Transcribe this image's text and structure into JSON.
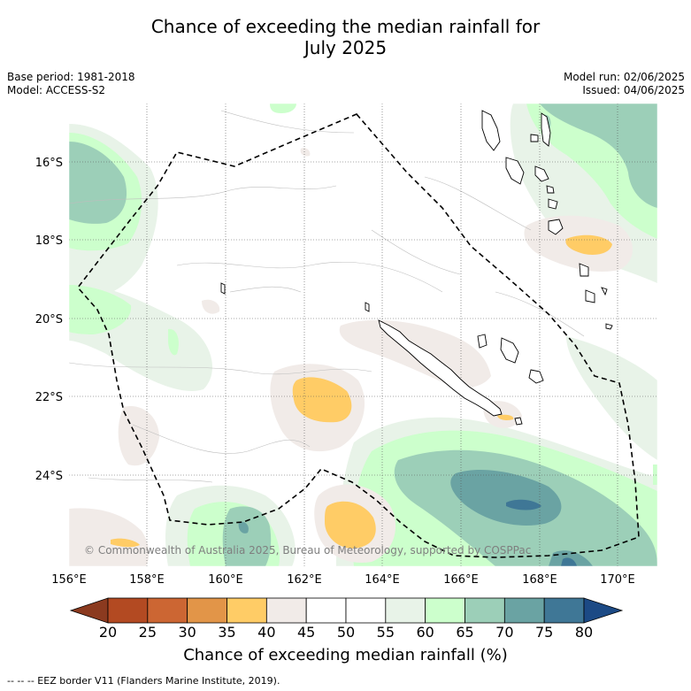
{
  "title_line1": "Chance of exceeding the median rainfall for",
  "title_line2": "July 2025",
  "meta_left": {
    "base_period": "Base period: 1981-2018",
    "model": "Model: ACCESS-S2"
  },
  "meta_right": {
    "model_run": "Model run: 02/06/2025",
    "issued": "Issued: 04/06/2025"
  },
  "lat_ticks": [
    "16°S",
    "18°S",
    "20°S",
    "22°S",
    "24°S"
  ],
  "lon_ticks": [
    "156°E",
    "158°E",
    "160°E",
    "162°E",
    "164°E",
    "166°E",
    "168°E",
    "170°E"
  ],
  "copyright": "© Commonwealth of Australia 2025, Bureau of Meteorology, supported by COSPPac",
  "colorbar": {
    "ticks": [
      "20",
      "25",
      "30",
      "35",
      "40",
      "45",
      "50",
      "55",
      "60",
      "65",
      "70",
      "75",
      "80"
    ],
    "colors": [
      "#8b3a1f",
      "#b34a22",
      "#cc6633",
      "#e29548",
      "#ffcc66",
      "#f1ebe8",
      "#ffffff",
      "#ffffff",
      "#e8f3e8",
      "#ccffcc",
      "#9ccfb8",
      "#6aa3a3",
      "#3f7796",
      "#1c4a85"
    ],
    "label": "Chance of exceeding median rainfall (%)"
  },
  "footnote": "--  --  -- EEZ border V11 (Flanders Marine Institute, 2019).",
  "colors": {
    "c35_40": "#ffcc66",
    "c40_45": "#f1ebe8",
    "c55_60": "#e8f3e8",
    "c60_65": "#ccffcc",
    "c65_70": "#9ccfb8",
    "c70_75": "#6aa3a3",
    "c75_80": "#3f7796"
  }
}
